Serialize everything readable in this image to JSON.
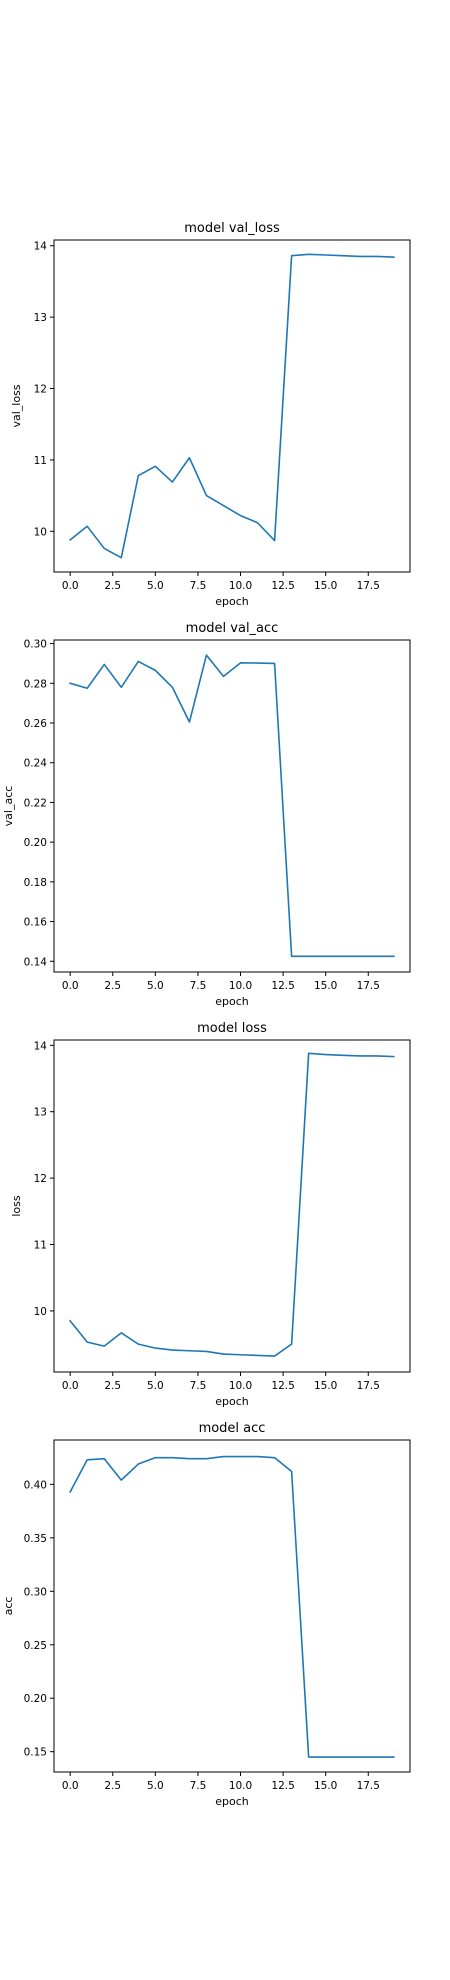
{
  "colors": {
    "series": "#1f77b4",
    "axes": "#000000",
    "background": "#ffffff"
  },
  "chart_data": [
    {
      "type": "line",
      "title": "model val_loss",
      "xlabel": "epoch",
      "ylabel": "val_loss",
      "grid": false,
      "xlim": [
        -0.95,
        19.95
      ],
      "ylim": [
        9.43,
        14.08
      ],
      "xticks": [
        0.0,
        2.5,
        5.0,
        7.5,
        10.0,
        12.5,
        15.0,
        17.5
      ],
      "xtick_labels": [
        "0.0",
        "2.5",
        "5.0",
        "7.5",
        "10.0",
        "12.5",
        "15.0",
        "17.5"
      ],
      "yticks": [
        10,
        11,
        12,
        13,
        14
      ],
      "ytick_labels": [
        "10",
        "11",
        "12",
        "13",
        "14"
      ],
      "series": [
        {
          "x": [
            0,
            1,
            2,
            3,
            4,
            5,
            6,
            7,
            8,
            9,
            10,
            11,
            12,
            13,
            14,
            15,
            16,
            17,
            18,
            19
          ],
          "y": [
            9.88,
            10.07,
            9.76,
            9.63,
            10.78,
            10.91,
            10.69,
            11.03,
            10.5,
            10.36,
            10.22,
            10.12,
            9.87,
            13.86,
            13.88,
            13.87,
            13.86,
            13.85,
            13.85,
            13.84
          ]
        }
      ]
    },
    {
      "type": "line",
      "title": "model val_acc",
      "xlabel": "epoch",
      "ylabel": "val_acc",
      "grid": false,
      "xlim": [
        -0.95,
        19.95
      ],
      "ylim": [
        0.1346,
        0.3018
      ],
      "xticks": [
        0.0,
        2.5,
        5.0,
        7.5,
        10.0,
        12.5,
        15.0,
        17.5
      ],
      "xtick_labels": [
        "0.0",
        "2.5",
        "5.0",
        "7.5",
        "10.0",
        "12.5",
        "15.0",
        "17.5"
      ],
      "yticks": [
        0.14,
        0.16,
        0.18,
        0.2,
        0.22,
        0.24,
        0.26,
        0.28,
        0.3
      ],
      "ytick_labels": [
        "0.14",
        "0.16",
        "0.18",
        "0.20",
        "0.22",
        "0.24",
        "0.26",
        "0.28",
        "0.30"
      ],
      "series": [
        {
          "x": [
            0,
            1,
            2,
            3,
            4,
            5,
            6,
            7,
            8,
            9,
            10,
            11,
            12,
            13,
            14,
            15,
            16,
            17,
            18,
            19
          ],
          "y": [
            0.28,
            0.2775,
            0.2895,
            0.278,
            0.291,
            0.2865,
            0.278,
            0.2605,
            0.2942,
            0.2835,
            0.2903,
            0.2902,
            0.29,
            0.1425,
            0.1425,
            0.1425,
            0.1425,
            0.1425,
            0.1425,
            0.1425
          ]
        }
      ]
    },
    {
      "type": "line",
      "title": "model loss",
      "xlabel": "epoch",
      "ylabel": "loss",
      "grid": false,
      "xlim": [
        -0.95,
        19.95
      ],
      "ylim": [
        9.08,
        14.08
      ],
      "xticks": [
        0.0,
        2.5,
        5.0,
        7.5,
        10.0,
        12.5,
        15.0,
        17.5
      ],
      "xtick_labels": [
        "0.0",
        "2.5",
        "5.0",
        "7.5",
        "10.0",
        "12.5",
        "15.0",
        "17.5"
      ],
      "yticks": [
        10,
        11,
        12,
        13,
        14
      ],
      "ytick_labels": [
        "10",
        "11",
        "12",
        "13",
        "14"
      ],
      "series": [
        {
          "x": [
            0,
            1,
            2,
            3,
            4,
            5,
            6,
            7,
            8,
            9,
            10,
            11,
            12,
            13,
            14,
            15,
            16,
            17,
            18,
            19
          ],
          "y": [
            9.85,
            9.53,
            9.47,
            9.67,
            9.5,
            9.44,
            9.41,
            9.4,
            9.39,
            9.35,
            9.34,
            9.33,
            9.32,
            9.5,
            13.88,
            13.86,
            13.85,
            13.84,
            13.84,
            13.83
          ]
        }
      ]
    },
    {
      "type": "line",
      "title": "model acc",
      "xlabel": "epoch",
      "ylabel": "acc",
      "grid": false,
      "xlim": [
        -0.95,
        19.95
      ],
      "ylim": [
        0.131,
        0.4415
      ],
      "xticks": [
        0.0,
        2.5,
        5.0,
        7.5,
        10.0,
        12.5,
        15.0,
        17.5
      ],
      "xtick_labels": [
        "0.0",
        "2.5",
        "5.0",
        "7.5",
        "10.0",
        "12.5",
        "15.0",
        "17.5"
      ],
      "yticks": [
        0.15,
        0.2,
        0.25,
        0.3,
        0.35,
        0.4
      ],
      "ytick_labels": [
        "0.15",
        "0.20",
        "0.25",
        "0.30",
        "0.35",
        "0.40"
      ],
      "series": [
        {
          "x": [
            0,
            1,
            2,
            3,
            4,
            5,
            6,
            7,
            8,
            9,
            10,
            11,
            12,
            13,
            14,
            15,
            16,
            17,
            18,
            19
          ],
          "y": [
            0.393,
            0.423,
            0.424,
            0.404,
            0.419,
            0.425,
            0.425,
            0.424,
            0.424,
            0.426,
            0.426,
            0.426,
            0.425,
            0.412,
            0.145,
            0.145,
            0.145,
            0.145,
            0.145,
            0.145
          ]
        }
      ]
    }
  ]
}
